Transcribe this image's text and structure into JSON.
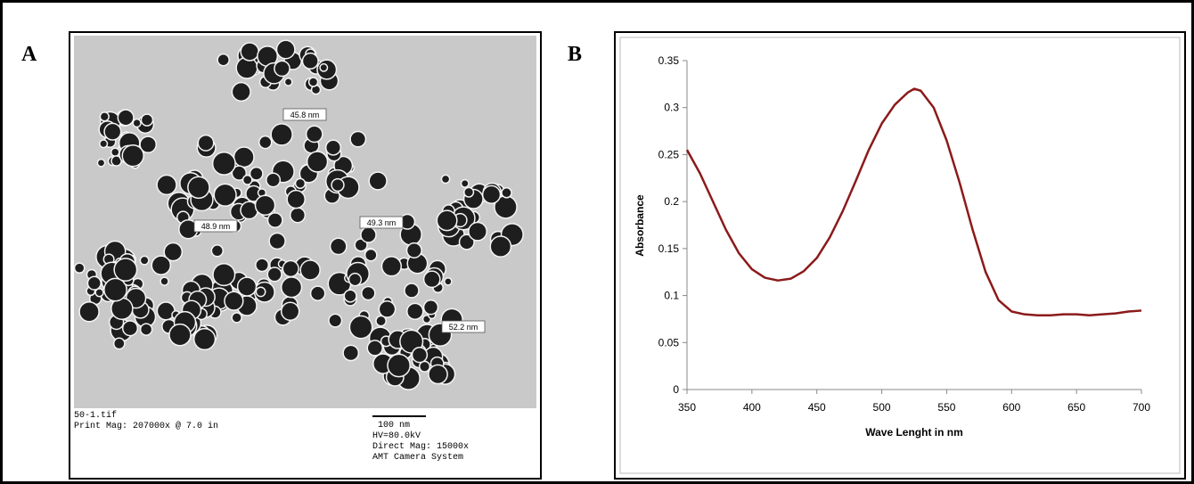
{
  "panels": {
    "a": "A",
    "b": "B"
  },
  "micrograph": {
    "measurements": [
      "45.8 nm",
      "48.9 nm",
      "49.3 nm",
      "52.2 nm"
    ],
    "file": "50-1.tif",
    "print_mag": "Print Mag: 207000x @ 7.0 in",
    "scale_bar": "100 nm",
    "hv": "HV=80.0kV",
    "direct_mag": "Direct Mag: 15000x",
    "camera": "AMT Camera System"
  },
  "chart_data": {
    "type": "line",
    "x": [
      350,
      360,
      370,
      380,
      390,
      400,
      410,
      420,
      430,
      440,
      450,
      460,
      470,
      480,
      490,
      500,
      510,
      520,
      525,
      530,
      540,
      550,
      560,
      570,
      580,
      590,
      600,
      610,
      620,
      630,
      640,
      650,
      660,
      670,
      680,
      690,
      700
    ],
    "values": [
      0.255,
      0.23,
      0.2,
      0.17,
      0.145,
      0.128,
      0.119,
      0.116,
      0.118,
      0.126,
      0.14,
      0.162,
      0.19,
      0.222,
      0.255,
      0.283,
      0.303,
      0.316,
      0.32,
      0.318,
      0.3,
      0.265,
      0.22,
      0.17,
      0.125,
      0.095,
      0.083,
      0.08,
      0.079,
      0.079,
      0.08,
      0.08,
      0.079,
      0.08,
      0.081,
      0.083,
      0.084
    ],
    "color": "#8b1a1a",
    "xlabel": "Wave Lenght in nm",
    "ylabel": "Absorbance",
    "xlim": [
      350,
      700
    ],
    "xticks": [
      350,
      400,
      450,
      500,
      550,
      600,
      650,
      700
    ],
    "ylim": [
      0,
      0.35
    ],
    "yticks": [
      0,
      0.05,
      0.1,
      0.15,
      0.2,
      0.25,
      0.3,
      0.35
    ]
  }
}
